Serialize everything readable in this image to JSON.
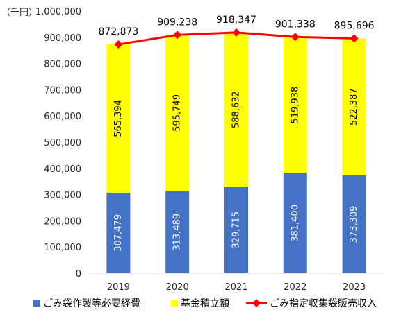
{
  "chart_data": {
    "type": "bar",
    "stacked": true,
    "unit_label": "（千円）",
    "categories": [
      "2019",
      "2020",
      "2021",
      "2022",
      "2023"
    ],
    "ylim": [
      0,
      1000000
    ],
    "yticks": [
      0,
      100000,
      200000,
      300000,
      400000,
      500000,
      600000,
      700000,
      800000,
      900000,
      1000000
    ],
    "ytick_labels": [
      "0",
      "100,000",
      "200,000",
      "300,000",
      "400,000",
      "500,000",
      "600,000",
      "700,000",
      "800,000",
      "900,000",
      "1,000,000"
    ],
    "grid": false,
    "legend_position": "bottom",
    "series": [
      {
        "name": "ごみ袋作製等必要経費",
        "kind": "bar",
        "color": "#4472C4",
        "values": [
          307479,
          313489,
          329715,
          381400,
          373309
        ],
        "labels": [
          "307,479",
          "313,489",
          "329,715",
          "381,400",
          "373,309"
        ]
      },
      {
        "name": "基金積立額",
        "kind": "bar",
        "color": "#FFFF00",
        "values": [
          565394,
          595749,
          588632,
          519938,
          522387
        ],
        "labels": [
          "565,394",
          "595,749",
          "588,632",
          "519,938",
          "522,387"
        ]
      },
      {
        "name": "ごみ指定収集袋販売収入",
        "kind": "line",
        "color": "#FF0000",
        "values": [
          872873,
          909238,
          918347,
          901338,
          895696
        ],
        "labels": [
          "872,873",
          "909,238",
          "918,347",
          "901,338",
          "895,696"
        ]
      }
    ]
  }
}
